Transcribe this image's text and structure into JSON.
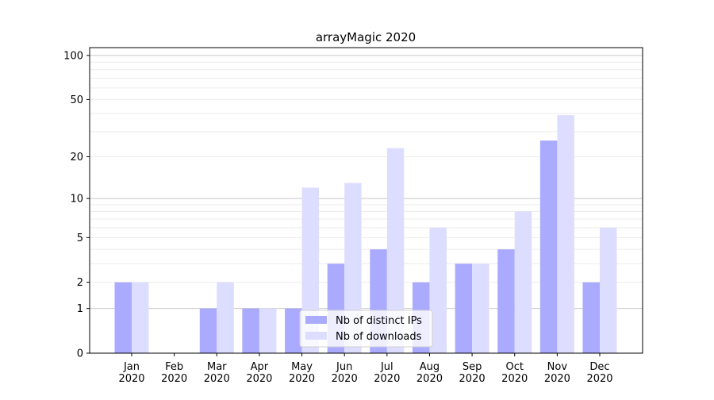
{
  "chart_data": {
    "type": "bar",
    "title": "arrayMagic 2020",
    "xlabel": "",
    "ylabel": "",
    "yscale": "symlog (log10(1+y))",
    "ylim": [
      0,
      113
    ],
    "yticks": [
      0,
      1,
      2,
      5,
      10,
      20,
      50,
      100
    ],
    "grid": true,
    "legend_position": "bottom-center",
    "categories": [
      "Jan\n2020",
      "Feb\n2020",
      "Mar\n2020",
      "Apr\n2020",
      "May\n2020",
      "Jun\n2020",
      "Jul\n2020",
      "Aug\n2020",
      "Sep\n2020",
      "Oct\n2020",
      "Nov\n2020",
      "Dec\n2020"
    ],
    "series": [
      {
        "name": "Nb of distinct IPs",
        "color": "#aaaaff",
        "values": [
          2,
          0,
          1,
          1,
          1,
          3,
          4,
          2,
          3,
          4,
          26,
          2
        ]
      },
      {
        "name": "Nb of downloads",
        "color": "#ddddff",
        "values": [
          2,
          0,
          2,
          1,
          12,
          13,
          23,
          6,
          3,
          8,
          39,
          6
        ]
      }
    ]
  }
}
